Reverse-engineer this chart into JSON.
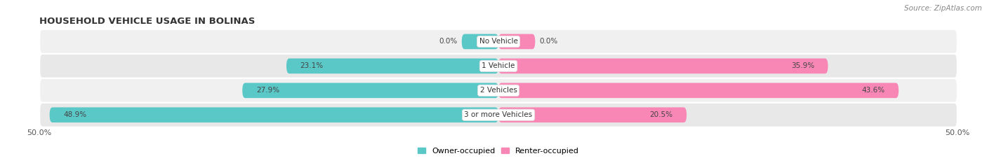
{
  "title": "HOUSEHOLD VEHICLE USAGE IN BOLINAS",
  "source": "Source: ZipAtlas.com",
  "categories": [
    "No Vehicle",
    "1 Vehicle",
    "2 Vehicles",
    "3 or more Vehicles"
  ],
  "owner_values": [
    0.0,
    23.1,
    27.9,
    48.9
  ],
  "renter_values": [
    0.0,
    35.9,
    43.6,
    20.5
  ],
  "owner_color": "#5bc8c8",
  "renter_color": "#f987b5",
  "owner_label": "Owner-occupied",
  "renter_label": "Renter-occupied",
  "xlim": 50.0,
  "bar_height": 0.62,
  "fig_width": 14.06,
  "fig_height": 2.33,
  "dpi": 100,
  "title_fontsize": 9.5,
  "source_fontsize": 7.5,
  "tick_fontsize": 8,
  "value_fontsize": 7.5,
  "category_fontsize": 7.5,
  "legend_fontsize": 8,
  "background_color": "#ffffff",
  "row_bg_color_odd": "#f0f0f0",
  "row_bg_color_even": "#e8e8e8",
  "no_vehicle_bar_width": 4.0
}
